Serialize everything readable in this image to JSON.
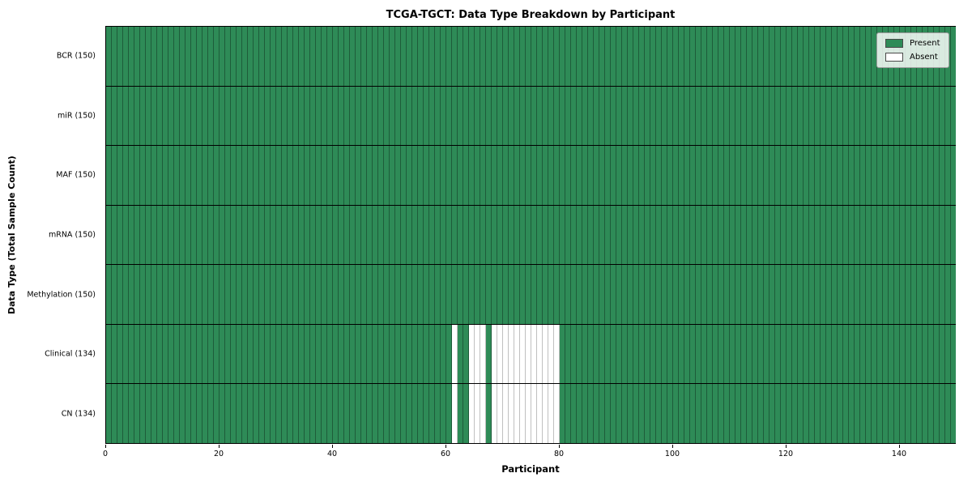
{
  "chart_data": {
    "type": "heatmap",
    "title": "TCGA-TGCT: Data Type Breakdown by Participant",
    "xlabel": "Participant",
    "ylabel": "Data Type (Total Sample Count)",
    "n_participants": 150,
    "x_ticks": [
      0,
      20,
      40,
      60,
      80,
      100,
      120,
      140
    ],
    "rows": [
      {
        "label": "BCR (150)",
        "present_count": 150,
        "absent_participants": []
      },
      {
        "label": "miR (150)",
        "present_count": 150,
        "absent_participants": []
      },
      {
        "label": "MAF (150)",
        "present_count": 150,
        "absent_participants": []
      },
      {
        "label": "mRNA (150)",
        "present_count": 150,
        "absent_participants": []
      },
      {
        "label": "Methylation (150)",
        "present_count": 150,
        "absent_participants": []
      },
      {
        "label": "Clinical (134)",
        "present_count": 134,
        "absent_participants": [
          61,
          64,
          65,
          66,
          68,
          69,
          70,
          71,
          72,
          73,
          74,
          75,
          76,
          77,
          78,
          79
        ]
      },
      {
        "label": "CN (134)",
        "present_count": 134,
        "absent_participants": [
          61,
          64,
          65,
          66,
          68,
          69,
          70,
          71,
          72,
          73,
          74,
          75,
          76,
          77,
          78,
          79
        ]
      }
    ],
    "legend": [
      {
        "label": "Present",
        "color": "#2e8b57"
      },
      {
        "label": "Absent",
        "color": "#ffffff"
      }
    ],
    "colors": {
      "present": "#2e8b57",
      "absent": "#ffffff",
      "cell_edge": "#1e5c3a",
      "row_separator": "#000000"
    }
  }
}
